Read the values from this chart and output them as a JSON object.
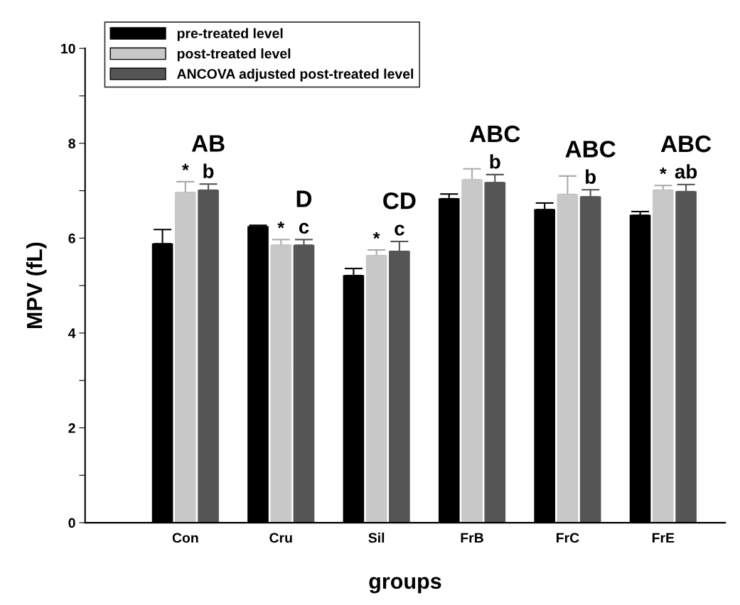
{
  "chart_data": {
    "type": "bar",
    "xlabel": "groups",
    "ylabel": "MPV (fL)",
    "categories": [
      "Con",
      "Cru",
      "Sil",
      "FrB",
      "FrC",
      "FrE"
    ],
    "series": [
      {
        "name": "pre-treated level",
        "color": "#000000",
        "values": [
          5.88,
          6.24,
          5.21,
          6.83,
          6.6,
          6.48
        ],
        "errors": [
          0.3,
          0.03,
          0.15,
          0.1,
          0.14,
          0.08
        ]
      },
      {
        "name": "post-treated level",
        "color": "#c8c8c8",
        "values": [
          6.96,
          5.85,
          5.63,
          7.23,
          6.92,
          7.01
        ],
        "errors": [
          0.23,
          0.12,
          0.12,
          0.23,
          0.39,
          0.1
        ],
        "value_labels": [
          "*",
          "*",
          "*",
          null,
          null,
          "*"
        ]
      },
      {
        "name": "ANCOVA adjusted post-treated level",
        "color": "#555555",
        "values": [
          7.01,
          5.85,
          5.72,
          7.17,
          6.87,
          6.98
        ],
        "errors": [
          0.13,
          0.12,
          0.21,
          0.17,
          0.15,
          0.15
        ],
        "value_labels": [
          "b",
          "c",
          "c",
          "b",
          "b",
          "ab"
        ]
      }
    ],
    "annotations": [
      "AB",
      "D",
      "CD",
      "ABC",
      "ABC",
      "ABC"
    ],
    "ylim": [
      0,
      10
    ],
    "yticks": [
      0,
      {
        "value": 1,
        "label": null
      },
      2,
      {
        "value": 3,
        "label": null
      },
      4,
      {
        "value": 5,
        "label": null
      },
      6,
      {
        "value": 7,
        "label": null
      },
      8,
      {
        "value": 9,
        "label": null
      },
      10
    ],
    "grid": false,
    "legend": "top left"
  }
}
